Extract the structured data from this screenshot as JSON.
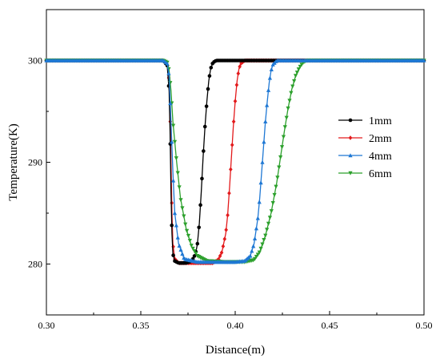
{
  "chart_data": {
    "type": "line",
    "xlabel": "Distance(m)",
    "ylabel": "Temperature(K)",
    "xlim": [
      0.3,
      0.5
    ],
    "ylim": [
      275,
      305
    ],
    "xticks": [
      0.3,
      0.35,
      0.4,
      0.45,
      0.5
    ],
    "xtick_labels": [
      "0.30",
      "0.35",
      "0.40",
      "0.45",
      "0.50"
    ],
    "yticks": [
      280,
      290,
      300
    ],
    "ytick_labels": [
      "280",
      "290",
      "300"
    ],
    "grid": false,
    "legend_position": "right-center",
    "series": [
      {
        "name": "1mm",
        "color": "#000000",
        "marker": "circle",
        "x": [
          0.3,
          0.32,
          0.34,
          0.355,
          0.362,
          0.364,
          0.365,
          0.3655,
          0.366,
          0.3665,
          0.367,
          0.368,
          0.37,
          0.374,
          0.377,
          0.379,
          0.38,
          0.381,
          0.382,
          0.383,
          0.384,
          0.385,
          0.386,
          0.387,
          0.388,
          0.389,
          0.39,
          0.392,
          0.395,
          0.4,
          0.42,
          0.45,
          0.5
        ],
        "y": [
          300,
          300,
          300,
          300,
          300,
          299.5,
          297,
          293,
          287,
          283,
          281,
          280.3,
          280.1,
          280.1,
          280.3,
          281,
          282,
          284,
          287,
          290.5,
          293.5,
          296,
          298,
          299.2,
          299.7,
          299.9,
          300,
          300,
          300,
          300,
          300,
          300,
          300
        ]
      },
      {
        "name": "2mm",
        "color": "#e31a1c",
        "marker": "diamond",
        "x": [
          0.3,
          0.32,
          0.34,
          0.355,
          0.362,
          0.364,
          0.365,
          0.3655,
          0.366,
          0.3665,
          0.367,
          0.368,
          0.37,
          0.38,
          0.388,
          0.391,
          0.393,
          0.395,
          0.396,
          0.397,
          0.398,
          0.399,
          0.4,
          0.401,
          0.402,
          0.403,
          0.405,
          0.408,
          0.415,
          0.43,
          0.46,
          0.5
        ],
        "y": [
          300,
          300,
          300,
          300,
          300,
          299.5,
          298,
          295,
          290,
          285,
          282,
          280.5,
          280.1,
          280.1,
          280.1,
          280.4,
          281.2,
          283,
          284.8,
          287.5,
          290.5,
          293.5,
          296,
          298,
          299.2,
          299.7,
          300,
          300,
          300,
          300,
          300,
          300
        ]
      },
      {
        "name": "4mm",
        "color": "#1f78d4",
        "marker": "triangle-up",
        "x": [
          0.3,
          0.32,
          0.34,
          0.355,
          0.362,
          0.364,
          0.365,
          0.366,
          0.367,
          0.368,
          0.37,
          0.373,
          0.38,
          0.39,
          0.4,
          0.405,
          0.408,
          0.41,
          0.412,
          0.413,
          0.414,
          0.415,
          0.416,
          0.417,
          0.418,
          0.419,
          0.42,
          0.422,
          0.425,
          0.43,
          0.46,
          0.5
        ],
        "y": [
          300,
          300,
          300,
          300,
          300,
          299.7,
          298.5,
          294,
          289,
          285,
          282,
          280.5,
          280.2,
          280.2,
          280.2,
          280.3,
          280.8,
          282,
          284.5,
          286.5,
          289,
          291.5,
          294,
          296,
          297.8,
          299,
          299.6,
          300,
          300,
          300,
          300,
          300
        ]
      },
      {
        "name": "6mm",
        "color": "#2ca02c",
        "marker": "triangle-down",
        "x": [
          0.3,
          0.32,
          0.34,
          0.355,
          0.362,
          0.364,
          0.365,
          0.366,
          0.367,
          0.369,
          0.371,
          0.374,
          0.377,
          0.38,
          0.385,
          0.395,
          0.405,
          0.41,
          0.413,
          0.416,
          0.419,
          0.422,
          0.424,
          0.426,
          0.428,
          0.43,
          0.432,
          0.434,
          0.436,
          0.438,
          0.442,
          0.45,
          0.47,
          0.5
        ],
        "y": [
          300,
          300,
          300,
          300,
          300,
          299.8,
          299,
          297,
          294,
          290,
          286.5,
          283.5,
          281.7,
          280.8,
          280.3,
          280.2,
          280.2,
          280.4,
          281.2,
          282.8,
          285,
          288,
          290.5,
          293,
          295.3,
          297.2,
          298.5,
          299.3,
          299.8,
          300,
          300,
          300,
          300,
          300
        ]
      }
    ],
    "draw_order": [
      1,
      0,
      3,
      2
    ]
  }
}
